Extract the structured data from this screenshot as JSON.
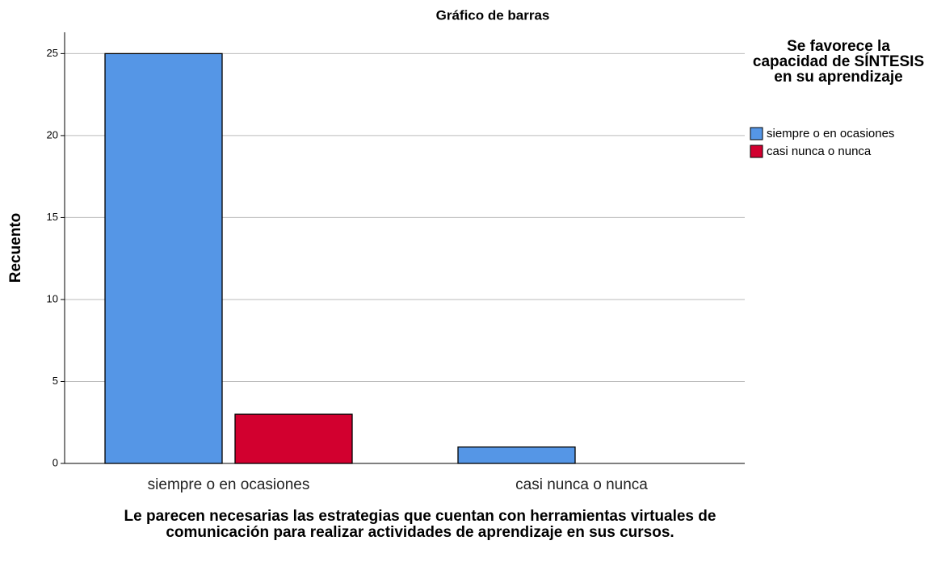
{
  "chart_data": {
    "type": "bar",
    "title": "Gráfico de barras",
    "y_label": "Recuento",
    "x_label": "Le parecen necesarias las estrategias que cuentan con herramientas virtuales de comunicación para realizar actividades de aprendizaje en sus cursos.",
    "legend_title": "Se favorece la capacidad de SÍNTESIS en su aprendizaje",
    "legend_position": "right",
    "categories": [
      "siempre o en ocasiones",
      "casi nunca o nunca"
    ],
    "series": [
      {
        "name": "siempre o en ocasiones",
        "color": "#5596e6",
        "values": [
          25,
          1
        ]
      },
      {
        "name": "casi nunca o nunca",
        "color": "#d2002f",
        "values": [
          3,
          null
        ]
      }
    ],
    "ylim": [
      0,
      26.3
    ],
    "yticks": [
      0,
      5,
      10,
      15,
      20,
      25
    ],
    "grid": true
  }
}
